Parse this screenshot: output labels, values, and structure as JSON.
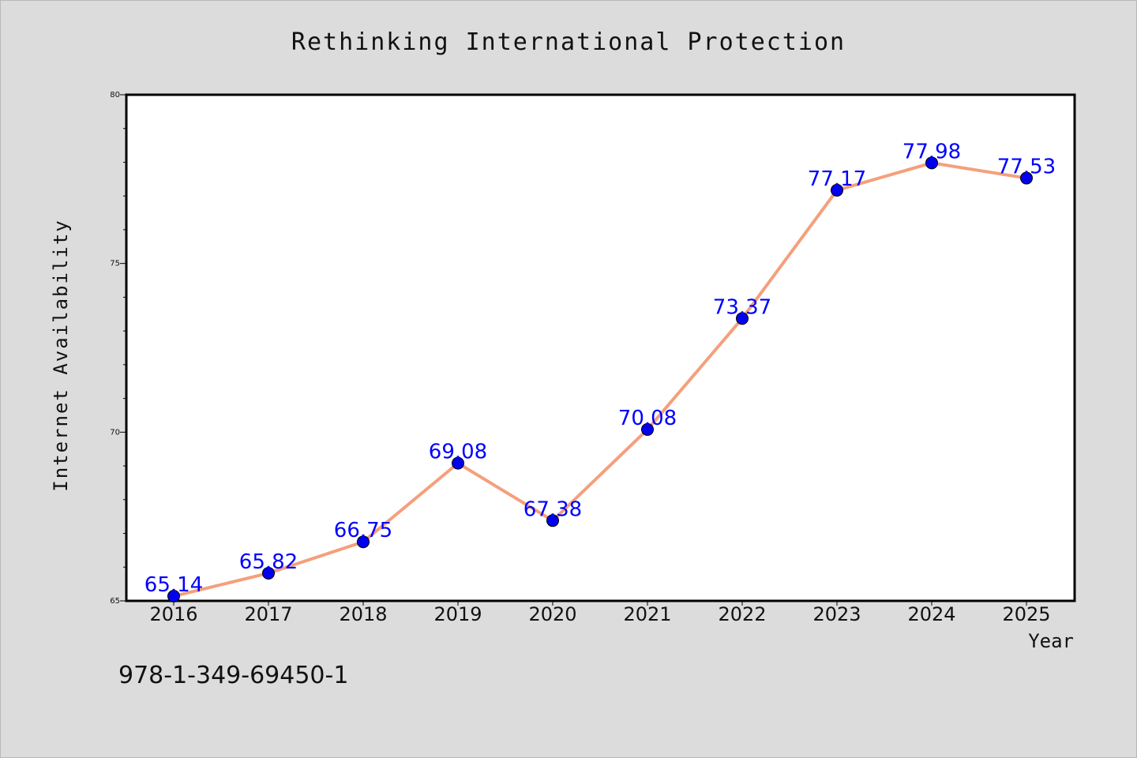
{
  "chart_data": {
    "type": "line",
    "title": "Rethinking International Protection",
    "xlabel": "Year",
    "ylabel": "Internet Availability",
    "categories": [
      "2016",
      "2017",
      "2018",
      "2019",
      "2020",
      "2021",
      "2022",
      "2023",
      "2024",
      "2025"
    ],
    "values": [
      65.14,
      65.82,
      66.75,
      69.08,
      67.38,
      70.08,
      73.37,
      77.17,
      77.98,
      77.53
    ],
    "value_labels": [
      "65.14",
      "65.82",
      "66.75",
      "69.08",
      "67.38",
      "70.08",
      "73.37",
      "77.17",
      "77.98",
      "77.53"
    ],
    "ylim": [
      65,
      80
    ],
    "yticks": [
      "65",
      "70",
      "75",
      "80"
    ],
    "line_color": "#f4a07c",
    "marker_color": "#0000ee",
    "label_color": "#0000ff",
    "grid": false,
    "legend": false
  },
  "annotation": {
    "isbn": "978-1-349-69450-1"
  }
}
